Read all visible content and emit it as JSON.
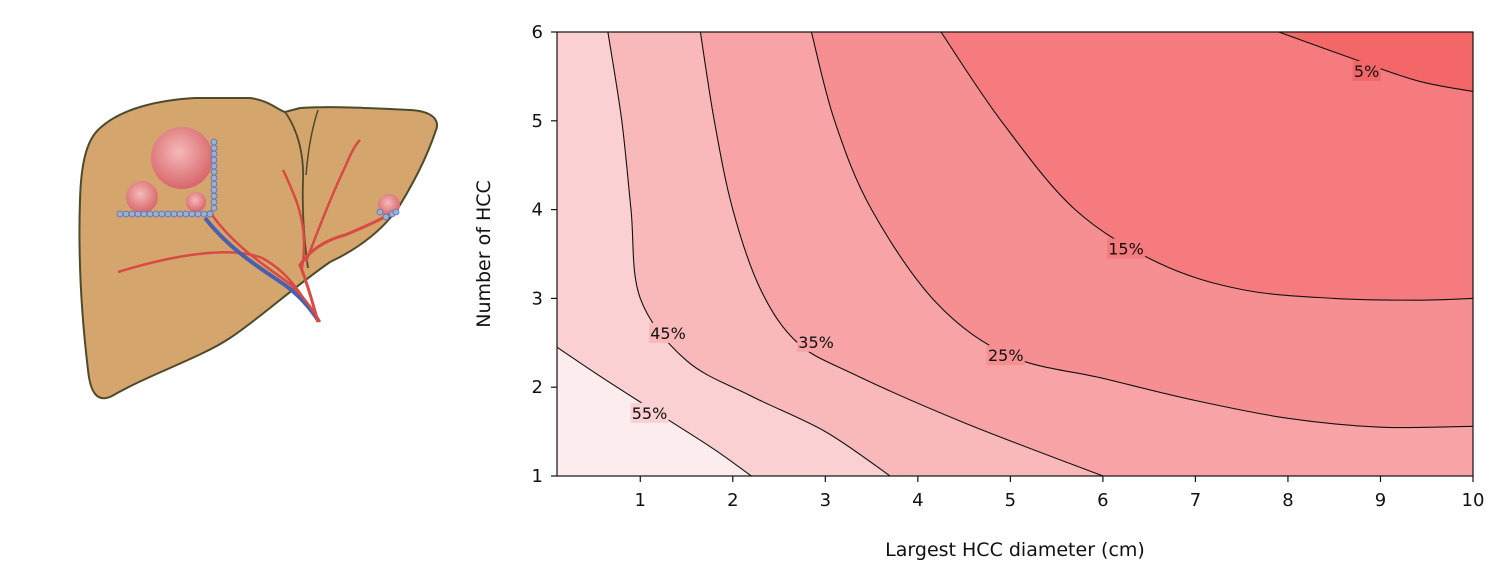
{
  "chart_data": {
    "type": "contour",
    "xlabel": "Largest HCC diameter (cm)",
    "ylabel": "Number of HCC",
    "xlim": [
      0.1,
      10
    ],
    "ylim": [
      1,
      6
    ],
    "x_ticks": [
      1,
      2,
      3,
      4,
      5,
      6,
      7,
      8,
      9,
      10
    ],
    "y_ticks": [
      1,
      2,
      3,
      4,
      5,
      6
    ],
    "grid": false,
    "legend": "none",
    "levels": [
      {
        "label": "55%",
        "points": [
          [
            0.1,
            2.45
          ],
          [
            0.6,
            2.1
          ],
          [
            1.2,
            1.7
          ],
          [
            1.8,
            1.3
          ],
          [
            2.2,
            1.0
          ]
        ],
        "label_at": [
          1.1,
          1.7
        ]
      },
      {
        "label": "45%",
        "points": [
          [
            0.65,
            6.0
          ],
          [
            0.8,
            5.0
          ],
          [
            0.9,
            4.0
          ],
          [
            1.0,
            3.0
          ],
          [
            1.5,
            2.3
          ],
          [
            2.2,
            1.9
          ],
          [
            3.0,
            1.5
          ],
          [
            3.7,
            1.0
          ]
        ],
        "label_at": [
          1.3,
          2.6
        ]
      },
      {
        "label": "35%",
        "points": [
          [
            1.65,
            6.0
          ],
          [
            1.8,
            5.0
          ],
          [
            2.0,
            4.0
          ],
          [
            2.3,
            3.1
          ],
          [
            2.7,
            2.5
          ],
          [
            3.3,
            2.15
          ],
          [
            4.5,
            1.6
          ],
          [
            6.0,
            1.0
          ]
        ],
        "label_at": [
          2.9,
          2.5
        ]
      },
      {
        "label": "25%",
        "points": [
          [
            2.85,
            6.0
          ],
          [
            3.1,
            5.0
          ],
          [
            3.5,
            4.0
          ],
          [
            4.2,
            2.95
          ],
          [
            5.0,
            2.35
          ],
          [
            6.0,
            2.1
          ],
          [
            7.0,
            1.85
          ],
          [
            8.0,
            1.65
          ],
          [
            9.0,
            1.55
          ],
          [
            10.0,
            1.56
          ]
        ],
        "label_at": [
          4.95,
          2.35
        ]
      },
      {
        "label": "15%",
        "points": [
          [
            4.25,
            6.0
          ],
          [
            4.9,
            5.0
          ],
          [
            5.7,
            4.0
          ],
          [
            6.6,
            3.4
          ],
          [
            7.5,
            3.1
          ],
          [
            8.5,
            3.0
          ],
          [
            9.4,
            2.98
          ],
          [
            10.0,
            3.0
          ]
        ],
        "label_at": [
          6.25,
          3.55
        ]
      },
      {
        "label": "5%",
        "points": [
          [
            7.9,
            6.0
          ],
          [
            8.7,
            5.7
          ],
          [
            9.4,
            5.45
          ],
          [
            10.0,
            5.33
          ]
        ],
        "label_at": [
          8.85,
          5.55
        ]
      }
    ],
    "region_colors": [
      "#fdeced",
      "#fbd0d2",
      "#f9b9bb",
      "#f8a3a6",
      "#f68f92",
      "#f57b7e",
      "#f46769"
    ]
  },
  "illustration": {
    "subject": "liver-with-tumors",
    "colors": {
      "liver": "#d4a56d",
      "liver_outline": "#4e4a2c",
      "tumor": "#e07a7b",
      "vessel": "#d94a44",
      "portal_vein": "#4a5fae",
      "bile_dot": "#9aaed6"
    }
  }
}
